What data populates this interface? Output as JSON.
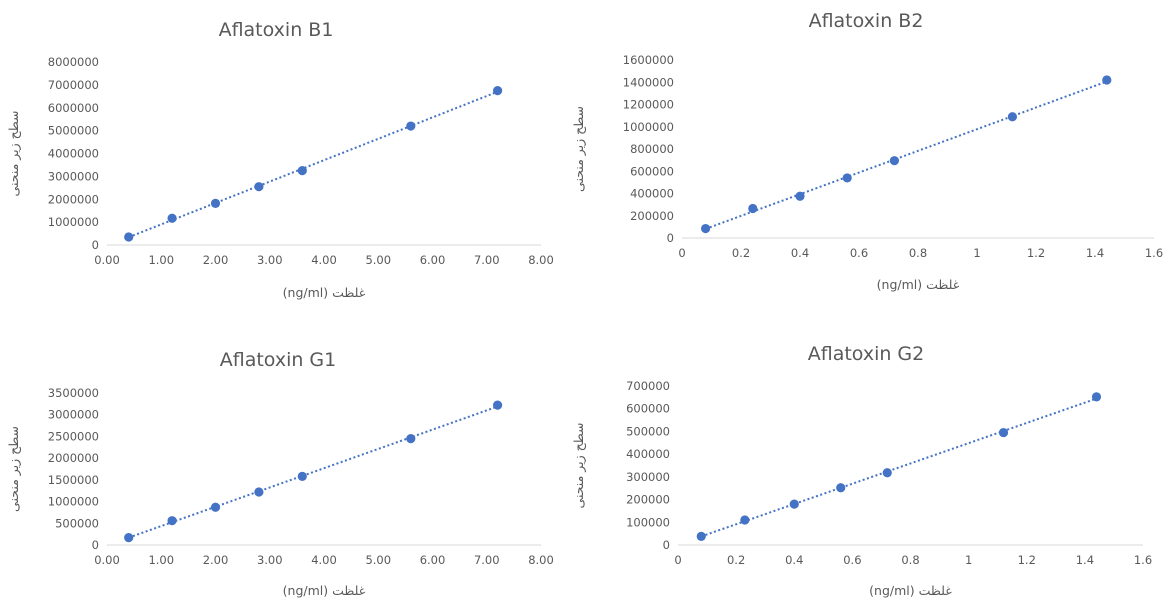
{
  "chart_data": [
    {
      "type": "scatter",
      "title": "Aflatoxin B1",
      "xlabel": "غلظت (ng/ml)",
      "ylabel": "سطح زیر منحنی",
      "x_ticks": [
        "0.00",
        "1.00",
        "2.00",
        "3.00",
        "4.00",
        "5.00",
        "6.00",
        "7.00",
        "8.00"
      ],
      "y_ticks": [
        "0",
        "1000000",
        "2000000",
        "3000000",
        "4000000",
        "5000000",
        "6000000",
        "7000000",
        "8000000"
      ],
      "xlim": [
        0,
        8
      ],
      "ylim": [
        0,
        8000000
      ],
      "trendline": "linear-dotted",
      "grid": false,
      "legend": "none",
      "x": [
        0.4,
        1.2,
        2.0,
        2.8,
        3.6,
        5.6,
        7.2
      ],
      "y": [
        350000,
        1170000,
        1820000,
        2550000,
        3250000,
        5200000,
        6750000
      ]
    },
    {
      "type": "scatter",
      "title": "Aflatoxin B2",
      "xlabel": "غلظت (ng/ml)",
      "ylabel": "سطح زیر منحنی",
      "x_ticks": [
        "0",
        "0.2",
        "0.4",
        "0.6",
        "0.8",
        "1",
        "1.2",
        "1.4",
        "1.6"
      ],
      "y_ticks": [
        "0",
        "200000",
        "400000",
        "600000",
        "800000",
        "1000000",
        "1200000",
        "1400000",
        "1600000"
      ],
      "xlim": [
        0,
        1.6
      ],
      "ylim": [
        0,
        1600000
      ],
      "trendline": "linear-dotted",
      "grid": false,
      "legend": "none",
      "x": [
        0.08,
        0.24,
        0.4,
        0.56,
        0.72,
        1.12,
        1.44
      ],
      "y": [
        85000,
        265000,
        375000,
        540000,
        695000,
        1090000,
        1420000
      ]
    },
    {
      "type": "scatter",
      "title": "Aflatoxin G1",
      "xlabel": "غلظت (ng/ml)",
      "ylabel": "سطح زیر منحنی",
      "x_ticks": [
        "0.00",
        "1.00",
        "2.00",
        "3.00",
        "4.00",
        "5.00",
        "6.00",
        "7.00",
        "8.00"
      ],
      "y_ticks": [
        "0",
        "500000",
        "1000000",
        "1500000",
        "2000000",
        "2500000",
        "3000000",
        "3500000"
      ],
      "xlim": [
        0,
        8
      ],
      "ylim": [
        0,
        3500000
      ],
      "trendline": "linear-dotted",
      "grid": false,
      "legend": "none",
      "x": [
        0.4,
        1.2,
        2.0,
        2.8,
        3.6,
        5.6,
        7.2
      ],
      "y": [
        170000,
        560000,
        870000,
        1220000,
        1580000,
        2450000,
        3220000
      ]
    },
    {
      "type": "scatter",
      "title": "Aflatoxin G2",
      "xlabel": "غلظت (ng/ml)",
      "ylabel": "سطح زیر منحنی",
      "x_ticks": [
        "0",
        "0.2",
        "0.4",
        "0.6",
        "0.8",
        "1",
        "1.2",
        "1.4",
        "1.6"
      ],
      "y_ticks": [
        "0",
        "100000",
        "200000",
        "300000",
        "400000",
        "500000",
        "600000",
        "700000"
      ],
      "xlim": [
        0,
        1.6
      ],
      "ylim": [
        0,
        700000
      ],
      "trendline": "linear-dotted",
      "grid": false,
      "legend": "none",
      "x": [
        0.08,
        0.23,
        0.4,
        0.56,
        0.72,
        1.12,
        1.44
      ],
      "y": [
        38000,
        110000,
        180000,
        252000,
        318000,
        495000,
        652000
      ]
    }
  ],
  "colors": {
    "series": "#4472c4",
    "text": "#595959",
    "axis": "#d9d9d9"
  }
}
